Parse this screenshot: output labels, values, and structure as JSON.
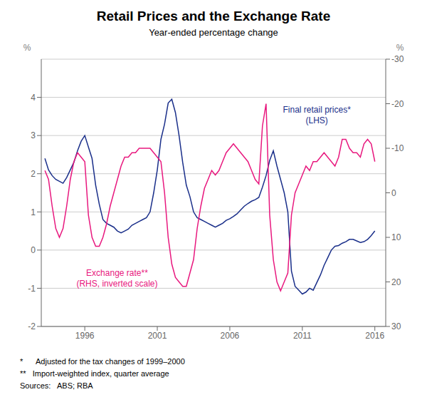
{
  "chart_data": {
    "type": "line",
    "title": "Retail Prices and the Exchange Rate",
    "subtitle": "Year-ended percentage change",
    "ylabel": "%",
    "y2label": "%",
    "footnotes": [
      "*      Adjusted for the tax changes of 1999–2000",
      "**   Import-weighted index, quarter average",
      "Sources:   ABS; RBA"
    ],
    "grid": true,
    "xlim": [
      1993.0,
      2016.75
    ],
    "xticks": [
      1996,
      2001,
      2006,
      2011,
      2016
    ],
    "ylim": [
      -2,
      5
    ],
    "yticks": [
      -2,
      -1,
      0,
      1,
      2,
      3,
      4
    ],
    "y2lim": [
      30,
      -30
    ],
    "y2ticks": [
      -30,
      -20,
      -10,
      0,
      10,
      20,
      30
    ],
    "x": [
      1993.25,
      1993.5,
      1993.75,
      1994.0,
      1994.25,
      1994.5,
      1994.75,
      1995.0,
      1995.25,
      1995.5,
      1995.75,
      1996.0,
      1996.25,
      1996.5,
      1996.75,
      1997.0,
      1997.25,
      1997.5,
      1997.75,
      1998.0,
      1998.25,
      1998.5,
      1998.75,
      1999.0,
      1999.25,
      1999.5,
      1999.75,
      2000.0,
      2000.25,
      2000.5,
      2000.75,
      2001.0,
      2001.25,
      2001.5,
      2001.75,
      2002.0,
      2002.25,
      2002.5,
      2002.75,
      2003.0,
      2003.25,
      2003.5,
      2003.75,
      2004.0,
      2004.25,
      2004.5,
      2004.75,
      2005.0,
      2005.25,
      2005.5,
      2005.75,
      2006.0,
      2006.25,
      2006.5,
      2006.75,
      2007.0,
      2007.25,
      2007.5,
      2007.75,
      2008.0,
      2008.25,
      2008.5,
      2008.75,
      2009.0,
      2009.25,
      2009.5,
      2009.75,
      2010.0,
      2010.25,
      2010.5,
      2010.75,
      2011.0,
      2011.25,
      2011.5,
      2011.75,
      2012.0,
      2012.25,
      2012.5,
      2012.75,
      2013.0,
      2013.25,
      2013.5,
      2013.75,
      2014.0,
      2014.25,
      2014.5,
      2014.75,
      2015.0,
      2015.25,
      2015.5,
      2015.75,
      2016.0
    ],
    "series": [
      {
        "name": "Final retail prices*\n(LHS)",
        "color": "#1a2f8a",
        "values": [
          2.4,
          2.1,
          1.95,
          1.85,
          1.8,
          1.75,
          1.9,
          2.1,
          2.3,
          2.6,
          2.85,
          3.0,
          2.7,
          2.4,
          1.7,
          1.2,
          0.8,
          0.7,
          0.65,
          0.6,
          0.5,
          0.45,
          0.5,
          0.55,
          0.65,
          0.7,
          0.75,
          0.8,
          0.85,
          1.0,
          1.5,
          2.1,
          2.9,
          3.3,
          3.85,
          3.95,
          3.6,
          3.0,
          2.3,
          1.7,
          1.4,
          1.0,
          0.85,
          0.8,
          0.75,
          0.7,
          0.65,
          0.6,
          0.65,
          0.7,
          0.78,
          0.82,
          0.88,
          0.95,
          1.05,
          1.15,
          1.22,
          1.28,
          1.32,
          1.38,
          1.65,
          1.95,
          2.35,
          2.6,
          2.2,
          1.85,
          1.5,
          1.0,
          -0.55,
          -0.95,
          -1.05,
          -1.15,
          -1.1,
          -1.0,
          -1.05,
          -0.85,
          -0.65,
          -0.4,
          -0.2,
          0.0,
          0.1,
          0.12,
          0.18,
          0.22,
          0.28,
          0.28,
          0.24,
          0.2,
          0.22,
          0.28,
          0.38,
          0.5
        ]
      },
      {
        "name": "Exchange rate**\n(RHS, inverted scale)",
        "color": "#e8187e",
        "axis": "y2",
        "values": [
          -5,
          -3,
          3,
          8,
          10,
          8,
          3,
          -3,
          -7,
          -9,
          -8,
          -7,
          5,
          10,
          12,
          12,
          10,
          7,
          3,
          0,
          -3,
          -6,
          -8,
          -8,
          -9,
          -9,
          -10,
          -10,
          -10,
          -10,
          -9,
          -8,
          -7,
          0,
          10,
          16,
          19,
          20,
          21,
          21,
          18,
          15,
          8,
          3,
          -1,
          -3,
          -5,
          -4,
          -5,
          -7,
          -9,
          -10,
          -11,
          -10,
          -9,
          -8,
          -7,
          -5,
          -3,
          -2,
          -15,
          -20,
          5,
          15,
          20,
          22,
          20,
          18,
          5,
          0,
          -2,
          -4,
          -6,
          -5,
          -7,
          -7,
          -8,
          -9,
          -8,
          -7,
          -6,
          -8,
          -12,
          -12,
          -10,
          -9,
          -9,
          -8,
          -11,
          -12,
          -11,
          -7
        ]
      }
    ]
  }
}
